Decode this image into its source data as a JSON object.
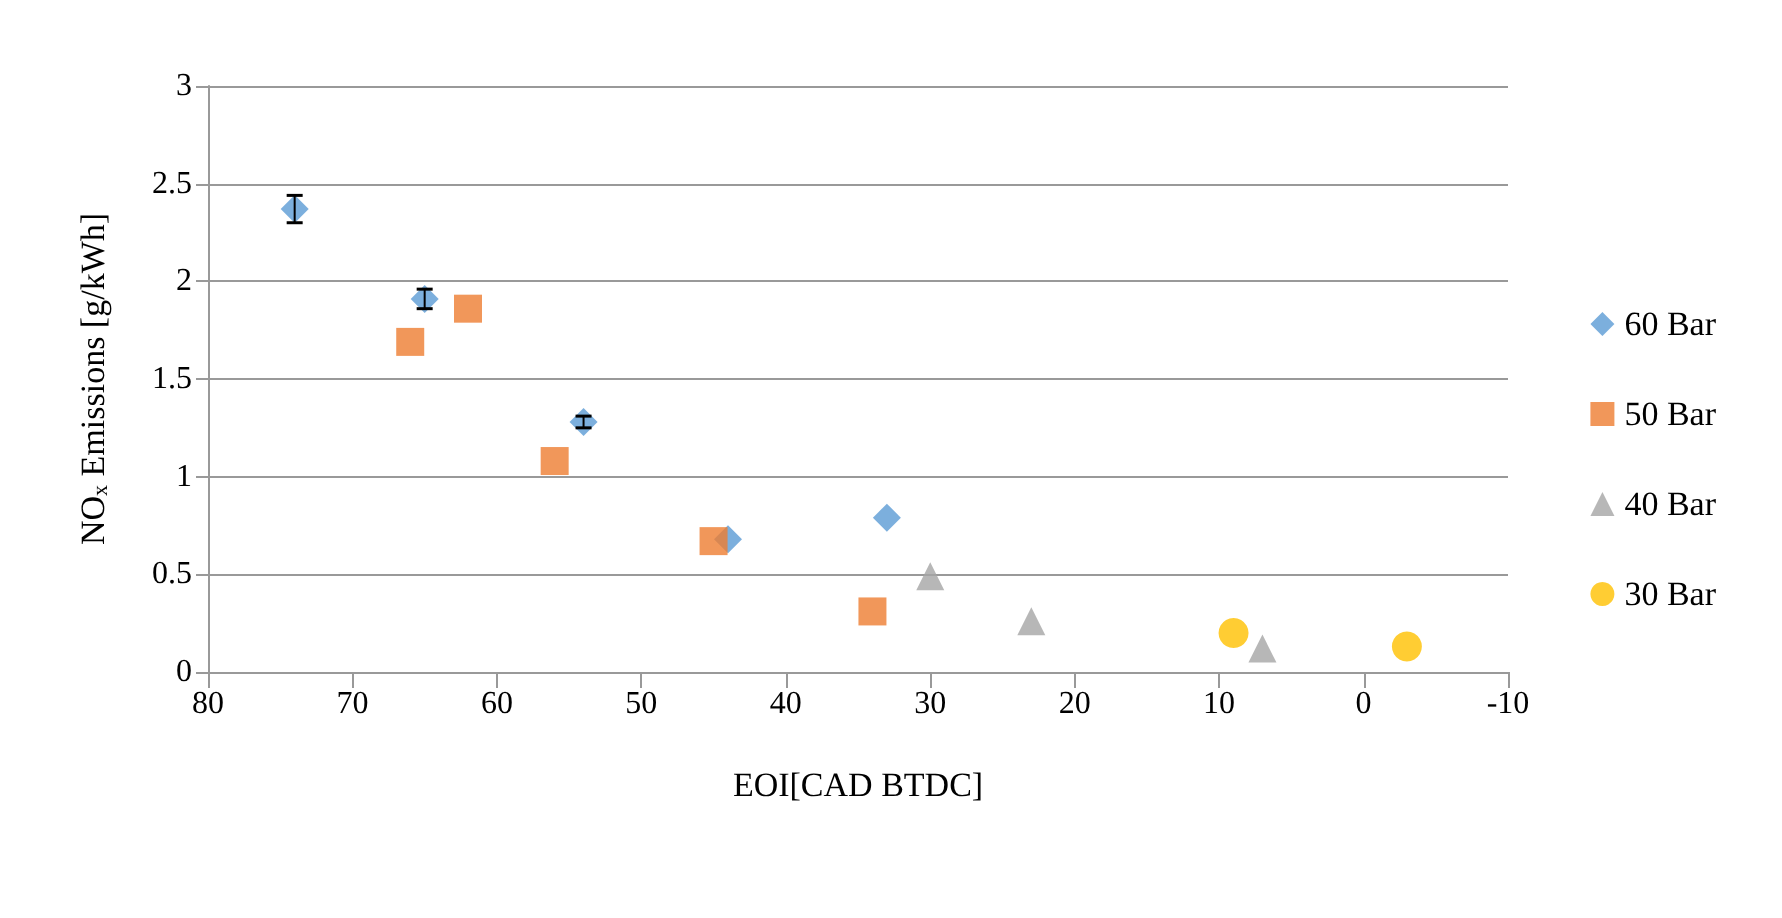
{
  "chart_data": {
    "type": "scatter",
    "xlabel": "EOI[CAD BTDC]",
    "ylabel": "NO$_{x}$ Emissions [g/kWh]",
    "xlim": [
      80,
      -10
    ],
    "xticks": [
      80,
      70,
      60,
      50,
      40,
      30,
      20,
      10,
      0,
      -10
    ],
    "ylim": [
      0,
      3
    ],
    "yticks": [
      0,
      0.5,
      1,
      1.5,
      2,
      2.5,
      3
    ],
    "grid": "y",
    "legend": "right",
    "series": [
      {
        "name": "60 Bar",
        "color": "#5b9bd5",
        "marker": "diamond",
        "x": [
          74,
          65,
          54,
          44,
          33
        ],
        "values": [
          2.37,
          1.91,
          1.28,
          0.68,
          0.79
        ],
        "errors": [
          0.07,
          0.05,
          0.03,
          null,
          null
        ]
      },
      {
        "name": "50 Bar",
        "color": "#ed7d31",
        "marker": "square",
        "x": [
          66,
          62,
          56,
          45,
          34
        ],
        "values": [
          1.69,
          1.86,
          1.08,
          0.67,
          0.31
        ]
      },
      {
        "name": "40 Bar",
        "color": "#a5a5a5",
        "marker": "triangle",
        "x": [
          30,
          23,
          7
        ],
        "values": [
          0.49,
          0.26,
          0.12
        ]
      },
      {
        "name": "30 Bar",
        "color": "#ffc000",
        "marker": "circle",
        "x": [
          9,
          -3
        ],
        "values": [
          0.2,
          0.13
        ]
      }
    ]
  }
}
